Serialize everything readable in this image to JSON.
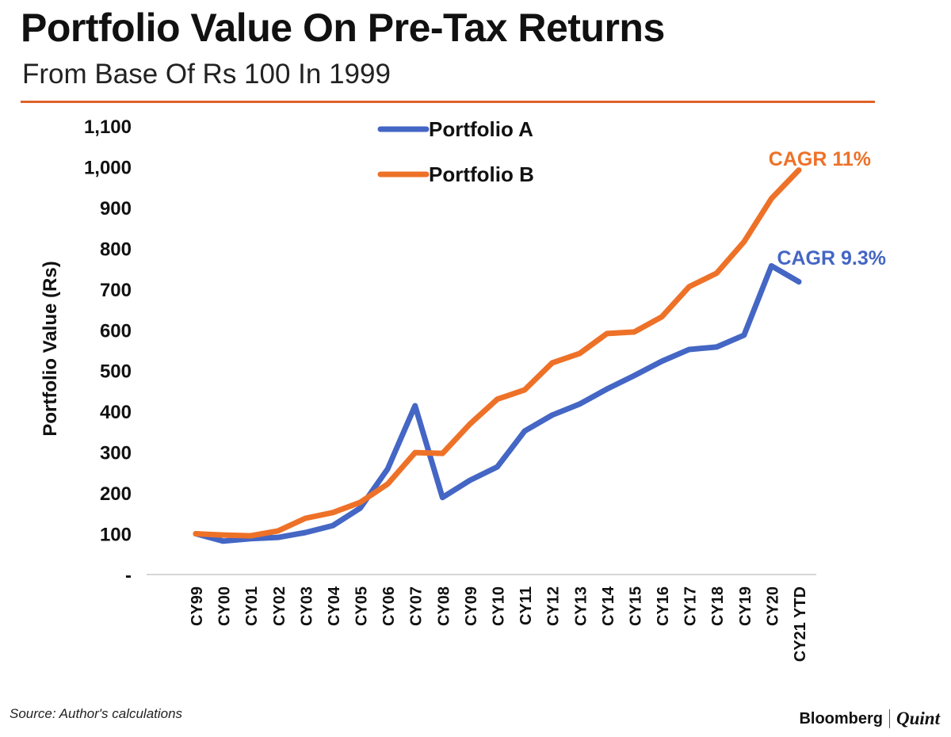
{
  "header": {
    "title": "Portfolio Value On Pre-Tax Returns",
    "subtitle": "From Base Of Rs 100 In 1999",
    "accent_color": "#e0622a"
  },
  "footer": {
    "source": "Source: Author's calculations",
    "brand_left": "Bloomberg",
    "brand_right": "Quint"
  },
  "chart_data": {
    "type": "line",
    "title": "Portfolio Value On Pre-Tax Returns",
    "subtitle": "From Base Of Rs 100 In 1999",
    "xlabel": "",
    "ylabel": "Portfolio Value (Rs)",
    "ylim": [
      0,
      1100
    ],
    "yticks": [
      0,
      100,
      200,
      300,
      400,
      500,
      600,
      700,
      800,
      900,
      1000,
      1100
    ],
    "ytick_labels": [
      "-",
      "100",
      "200",
      "300",
      "400",
      "500",
      "600",
      "700",
      "800",
      "900",
      "1,000",
      "1,100"
    ],
    "grid": false,
    "legend": "top-center",
    "categories": [
      "CY99",
      "CY00",
      "CY01",
      "CY02",
      "CY03",
      "CY04",
      "CY05",
      "CY06",
      "CY07",
      "CY08",
      "CY09",
      "CY10",
      "CY11",
      "CY12",
      "CY13",
      "CY14",
      "CY15",
      "CY16",
      "CY17",
      "CY18",
      "CY19",
      "CY20",
      "CY21 YTD"
    ],
    "series": [
      {
        "name": "Portfolio A",
        "color": "#4466c4",
        "values": [
          100,
          82,
          88,
          91,
          103,
          120,
          163,
          259,
          414,
          189,
          231,
          264,
          352,
          391,
          418,
          455,
          488,
          523,
          552,
          558,
          587,
          757,
          718
        ],
        "annotation": "CAGR 9.3%"
      },
      {
        "name": "Portfolio B",
        "color": "#ee7128",
        "values": [
          100,
          97,
          95,
          107,
          138,
          152,
          177,
          222,
          299,
          297,
          369,
          430,
          453,
          519,
          542,
          591,
          595,
          632,
          706,
          739,
          816,
          922,
          992
        ],
        "annotation": "CAGR 11%"
      }
    ]
  }
}
